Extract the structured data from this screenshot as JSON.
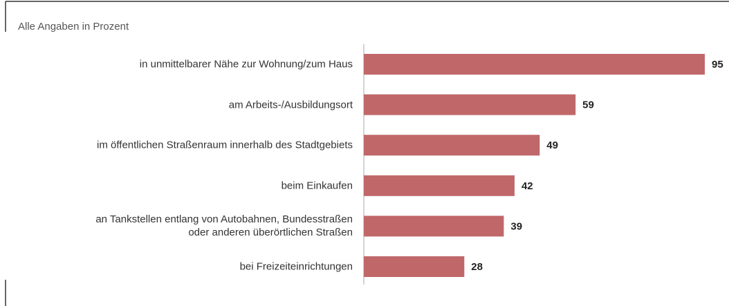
{
  "chart_data": {
    "type": "bar",
    "orientation": "horizontal",
    "subtitle": "Alle Angaben in Prozent",
    "categories": [
      "in unmittelbarer Nähe zur Wohnung/zum Haus",
      "am Arbeits-/Ausbildungsort",
      "im öffentlichen Straßenraum innerhalb des Stadtgebiets",
      "beim Einkaufen",
      "an Tankstellen entlang von Autobahnen, Bundesstraßen\noder anderen überörtlichen Straßen",
      "bei Freizeiteinrichtungen"
    ],
    "values": [
      95,
      59,
      49,
      42,
      39,
      28
    ],
    "color": "#c0676a"
  }
}
